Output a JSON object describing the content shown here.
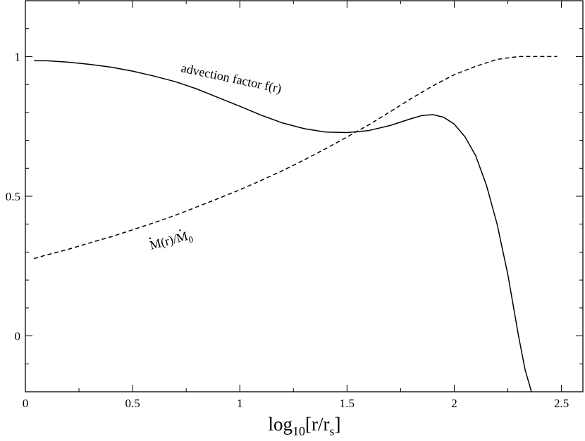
{
  "chart_data": {
    "type": "line",
    "xlabel": {
      "prefix": "log",
      "sub1": "10",
      "mid": "[r/r",
      "sub2": "s",
      "suffix": "]"
    },
    "ylabel": "",
    "xlim": [
      0,
      2.6
    ],
    "ylim": [
      -0.2,
      1.2
    ],
    "x_ticks": [
      {
        "value": 0,
        "label": "0"
      },
      {
        "value": 0.5,
        "label": "0.5"
      },
      {
        "value": 1,
        "label": "1"
      },
      {
        "value": 1.5,
        "label": "1.5"
      },
      {
        "value": 2,
        "label": "2"
      },
      {
        "value": 2.5,
        "label": "2.5"
      }
    ],
    "y_ticks": [
      {
        "value": 0,
        "label": "0"
      },
      {
        "value": 0.5,
        "label": "0.5"
      },
      {
        "value": 1,
        "label": "1"
      }
    ],
    "x_minor_step": 0.25,
    "y_minor_step": 0.1,
    "grid": false,
    "legend": "none",
    "series": [
      {
        "line_style": "solid",
        "color": "#000000",
        "x": [
          0.04,
          0.1,
          0.2,
          0.3,
          0.4,
          0.5,
          0.6,
          0.7,
          0.8,
          0.9,
          1.0,
          1.1,
          1.2,
          1.3,
          1.4,
          1.5,
          1.6,
          1.7,
          1.8,
          1.85,
          1.9,
          1.95,
          2.0,
          2.05,
          2.1,
          2.15,
          2.2,
          2.25,
          2.3,
          2.33,
          2.36
        ],
        "y": [
          0.985,
          0.985,
          0.98,
          0.972,
          0.962,
          0.948,
          0.93,
          0.91,
          0.884,
          0.853,
          0.822,
          0.79,
          0.762,
          0.742,
          0.73,
          0.728,
          0.735,
          0.753,
          0.778,
          0.789,
          0.792,
          0.783,
          0.758,
          0.713,
          0.645,
          0.54,
          0.4,
          0.22,
          0.0,
          -0.12,
          -0.2
        ]
      },
      {
        "line_style": "dashed",
        "color": "#000000",
        "x": [
          0.04,
          0.1,
          0.2,
          0.3,
          0.4,
          0.5,
          0.6,
          0.7,
          0.8,
          0.9,
          1.0,
          1.1,
          1.2,
          1.3,
          1.4,
          1.5,
          1.6,
          1.7,
          1.8,
          1.9,
          2.0,
          2.1,
          2.2,
          2.3,
          2.35,
          2.4,
          2.48
        ],
        "y": [
          0.277,
          0.29,
          0.31,
          0.333,
          0.355,
          0.38,
          0.405,
          0.432,
          0.462,
          0.492,
          0.523,
          0.557,
          0.592,
          0.63,
          0.67,
          0.712,
          0.755,
          0.802,
          0.85,
          0.895,
          0.935,
          0.965,
          0.99,
          1.0,
          1.0,
          1.0,
          1.0
        ]
      }
    ],
    "annotations": [
      {
        "text": "advection factor f(r)",
        "x": 1.29,
        "y": 0.87
      },
      {
        "text_main": "M(r)/M",
        "subscript": "0",
        "x": 0.72,
        "y": 0.34
      }
    ]
  }
}
